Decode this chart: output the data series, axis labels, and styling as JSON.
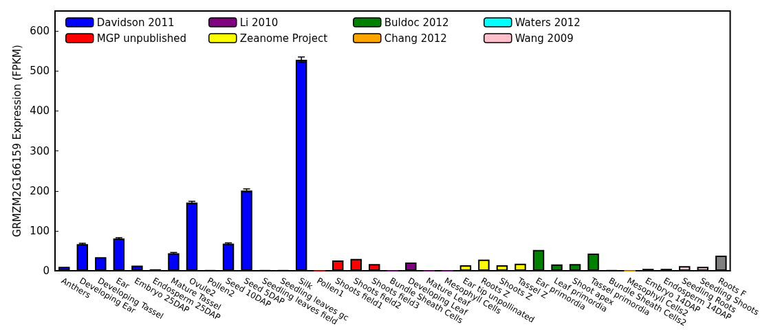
{
  "chart_data": {
    "type": "bar",
    "ylabel": "GRMZM2G166159 Expression (FPKM)",
    "categories": [
      "Anthers",
      "Developing Ear",
      "Developing Tassel",
      "Ear",
      "Embryo 25DAP",
      "Endosperm 25DAP",
      "Mature Tassel",
      "Ovule2",
      "Pollen2",
      "Seed 10DAP",
      "Seed 5DAP",
      "Seedling leaves field",
      "Seedling leaves gc",
      "Silk",
      "Pollen1",
      "Shoots field1",
      "Shoots field2",
      "Shoots field3",
      "Bundle Sheath Cells",
      "Developing Leaf",
      "Mature Leaf",
      "Mesophyll Cells",
      "Ear tip unpollinated",
      "Roots Z",
      "Shoots Z",
      "Tassel Z",
      "Ear primordia",
      "Leaf primordia",
      "Shoot apex",
      "Tassel primordia",
      "Bundle Sheath Cells2",
      "Mesophyll Cells2",
      "Embryo 14DAP",
      "Endosperm 14DAP",
      "Seedling Roots",
      "Seedling Shoots",
      "Roots F"
    ],
    "series": [
      {
        "name": "Davidson 2011",
        "color": "#0000ff",
        "values": [
          10,
          67,
          34,
          81,
          13,
          4,
          44,
          171,
          1,
          68,
          201,
          1,
          1,
          528,
          null,
          null,
          null,
          null,
          null,
          null,
          null,
          null,
          null,
          null,
          null,
          null,
          null,
          null,
          null,
          null,
          null,
          null,
          null,
          null,
          null,
          null,
          null
        ],
        "errors": [
          null,
          2,
          null,
          2,
          null,
          null,
          2,
          3,
          null,
          2,
          4,
          null,
          null,
          7,
          null,
          null,
          null,
          null,
          null,
          null,
          null,
          null,
          null,
          null,
          null,
          null,
          null,
          null,
          null,
          null,
          null,
          null,
          null,
          null,
          null,
          null,
          null
        ]
      },
      {
        "name": "MGP unpublished",
        "color": "#ff0000",
        "values": [
          null,
          null,
          null,
          null,
          null,
          null,
          null,
          null,
          null,
          null,
          null,
          null,
          null,
          null,
          0,
          26,
          30,
          17,
          null,
          null,
          null,
          null,
          null,
          null,
          null,
          null,
          null,
          null,
          null,
          null,
          null,
          null,
          null,
          null,
          null,
          null,
          null
        ]
      },
      {
        "name": "Li 2010",
        "color": "#800080",
        "values": [
          null,
          null,
          null,
          null,
          null,
          null,
          null,
          null,
          null,
          null,
          null,
          null,
          null,
          null,
          null,
          null,
          null,
          null,
          0,
          21,
          0,
          0,
          null,
          null,
          null,
          null,
          null,
          null,
          null,
          null,
          null,
          null,
          null,
          null,
          null,
          null,
          null
        ]
      },
      {
        "name": "Zeanome Project",
        "color": "#ffff00",
        "values": [
          null,
          null,
          null,
          null,
          null,
          null,
          null,
          null,
          null,
          null,
          null,
          null,
          null,
          null,
          null,
          null,
          null,
          null,
          null,
          null,
          null,
          null,
          14,
          28,
          14,
          18,
          null,
          null,
          null,
          null,
          null,
          null,
          null,
          null,
          null,
          null,
          null
        ]
      },
      {
        "name": "Buldoc 2012",
        "color": "#008000",
        "values": [
          null,
          null,
          null,
          null,
          null,
          null,
          null,
          null,
          null,
          null,
          null,
          null,
          null,
          null,
          null,
          null,
          null,
          null,
          null,
          null,
          null,
          null,
          null,
          null,
          null,
          null,
          52,
          16,
          17,
          43,
          null,
          null,
          null,
          null,
          null,
          null,
          null
        ]
      },
      {
        "name": "Chang 2012",
        "color": "#ffa500",
        "values": [
          null,
          null,
          null,
          null,
          null,
          null,
          null,
          null,
          null,
          null,
          null,
          null,
          null,
          null,
          null,
          null,
          null,
          null,
          null,
          null,
          null,
          null,
          null,
          null,
          null,
          null,
          null,
          null,
          null,
          null,
          1,
          0,
          null,
          null,
          null,
          null,
          null
        ]
      },
      {
        "name": "Waters 2012",
        "color": "#00ffff",
        "values": [
          null,
          null,
          null,
          null,
          null,
          null,
          null,
          null,
          null,
          null,
          null,
          null,
          null,
          null,
          null,
          null,
          null,
          null,
          null,
          null,
          null,
          null,
          null,
          null,
          null,
          null,
          null,
          null,
          null,
          null,
          null,
          null,
          5,
          5,
          null,
          null,
          null
        ]
      },
      {
        "name": "Wang 2009",
        "color": "#ffc0cb",
        "values": [
          null,
          null,
          null,
          null,
          null,
          null,
          null,
          null,
          null,
          null,
          null,
          null,
          null,
          null,
          null,
          null,
          null,
          null,
          null,
          null,
          null,
          null,
          null,
          null,
          null,
          null,
          null,
          null,
          null,
          null,
          null,
          null,
          null,
          null,
          12,
          10,
          null
        ]
      },
      {
        "color": "#808080",
        "values": [
          null,
          null,
          null,
          null,
          null,
          null,
          null,
          null,
          null,
          null,
          null,
          null,
          null,
          null,
          null,
          null,
          null,
          null,
          null,
          null,
          null,
          null,
          null,
          null,
          null,
          null,
          null,
          null,
          null,
          null,
          null,
          null,
          null,
          null,
          null,
          null,
          38
        ]
      }
    ],
    "ylim": [
      0,
      650
    ],
    "yticks": [
      0,
      100,
      200,
      300,
      400,
      500,
      600
    ],
    "grid": false,
    "legend": "top"
  }
}
